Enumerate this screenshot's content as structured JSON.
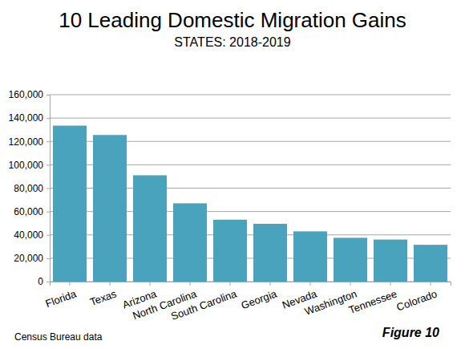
{
  "chart_data": {
    "type": "bar",
    "title": "10 Leading Domestic Migration Gains",
    "subtitle": "STATES: 2018-2019",
    "categories": [
      "Florida",
      "Texas",
      "Arizona",
      "North Carolina",
      "South Carolina",
      "Georgia",
      "Nevada",
      "Washington",
      "Tennessee",
      "Colorado"
    ],
    "values": [
      133500,
      125500,
      91000,
      67000,
      53000,
      49500,
      43000,
      37500,
      36000,
      31500
    ],
    "color": "#4aa3bd",
    "ylim": [
      0,
      160000
    ],
    "yticks": [
      0,
      {
        "value": 20000,
        "label": "20,000"
      },
      {
        "value": 40000,
        "label": "40,000"
      },
      {
        "value": 60000,
        "label": "60,000"
      },
      {
        "value": 80000,
        "label": "80,000"
      },
      {
        "value": 100000,
        "label": "100,000"
      },
      {
        "value": 120000,
        "label": "120,000"
      },
      {
        "value": 140000,
        "label": "140,000"
      },
      {
        "value": 160000,
        "label": "160,000"
      }
    ],
    "grid": true,
    "annotations": [
      "Census Bureau data",
      "Figure 10"
    ]
  }
}
